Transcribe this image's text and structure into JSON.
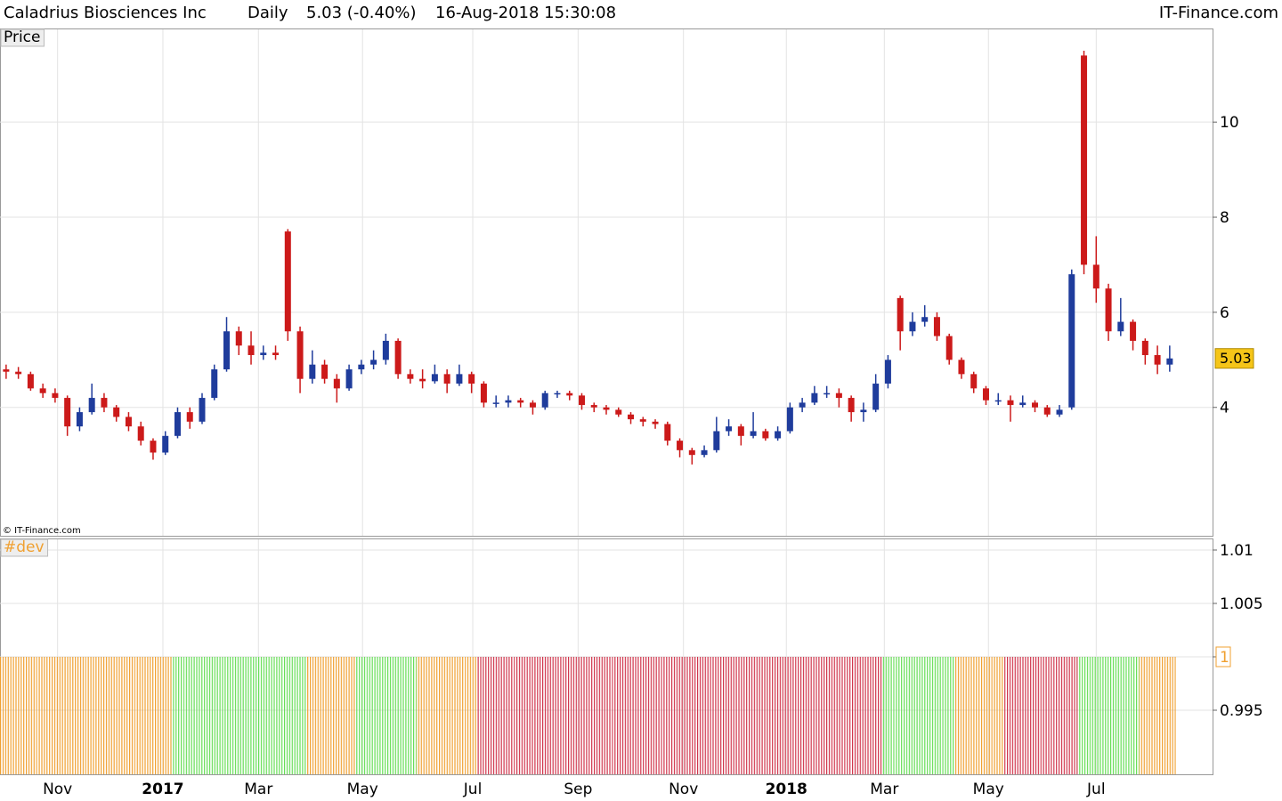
{
  "header": {
    "title": "Caladrius Biosciences Inc",
    "period": "Daily",
    "change": "5.03 (-0.40%)",
    "timestamp": "16-Aug-2018 15:30:08",
    "brand": "IT-Finance.com"
  },
  "chart_data": [
    {
      "type": "candlestick",
      "label": "Price",
      "copyright": "© IT-Finance.com",
      "up_color": "#1f3c9c",
      "down_color": "#cc1a1a",
      "grid": true,
      "xlim": [
        -0.5,
        98.5
      ],
      "ylim": [
        1.3,
        11.95
      ],
      "yticks": [
        4,
        6,
        8,
        10
      ],
      "xticks": [
        {
          "value": 4.2,
          "label": "Nov"
        },
        {
          "value": 12.8,
          "label": "2017"
        },
        {
          "value": 20.6,
          "label": "Mar"
        },
        {
          "value": 29.1,
          "label": "May"
        },
        {
          "value": 38.1,
          "label": "Jul"
        },
        {
          "value": 46.7,
          "label": "Sep"
        },
        {
          "value": 55.3,
          "label": "Nov"
        },
        {
          "value": 63.7,
          "label": "2018"
        },
        {
          "value": 71.7,
          "label": "Mar"
        },
        {
          "value": 80.2,
          "label": "May"
        },
        {
          "value": 89.0,
          "label": "Jul"
        }
      ],
      "candles": [
        {
          "o": 4.8,
          "h": 4.9,
          "l": 4.6,
          "c": 4.75
        },
        {
          "o": 4.75,
          "h": 4.85,
          "l": 4.6,
          "c": 4.7
        },
        {
          "o": 4.7,
          "h": 4.75,
          "l": 4.35,
          "c": 4.4
        },
        {
          "o": 4.4,
          "h": 4.5,
          "l": 4.2,
          "c": 4.3
        },
        {
          "o": 4.3,
          "h": 4.4,
          "l": 4.1,
          "c": 4.2
        },
        {
          "o": 4.2,
          "h": 4.25,
          "l": 3.4,
          "c": 3.6
        },
        {
          "o": 3.6,
          "h": 4.0,
          "l": 3.5,
          "c": 3.9
        },
        {
          "o": 3.9,
          "h": 4.5,
          "l": 3.85,
          "c": 4.2
        },
        {
          "o": 4.2,
          "h": 4.3,
          "l": 3.9,
          "c": 4.0
        },
        {
          "o": 4.0,
          "h": 4.05,
          "l": 3.7,
          "c": 3.8
        },
        {
          "o": 3.8,
          "h": 3.9,
          "l": 3.5,
          "c": 3.6
        },
        {
          "o": 3.6,
          "h": 3.7,
          "l": 3.2,
          "c": 3.3
        },
        {
          "o": 3.3,
          "h": 3.35,
          "l": 2.9,
          "c": 3.05
        },
        {
          "o": 3.05,
          "h": 3.5,
          "l": 3.0,
          "c": 3.4
        },
        {
          "o": 3.4,
          "h": 4.0,
          "l": 3.35,
          "c": 3.9
        },
        {
          "o": 3.9,
          "h": 4.0,
          "l": 3.55,
          "c": 3.7
        },
        {
          "o": 3.7,
          "h": 4.3,
          "l": 3.65,
          "c": 4.2
        },
        {
          "o": 4.2,
          "h": 4.9,
          "l": 4.15,
          "c": 4.8
        },
        {
          "o": 4.8,
          "h": 5.9,
          "l": 4.75,
          "c": 5.6
        },
        {
          "o": 5.6,
          "h": 5.7,
          "l": 5.1,
          "c": 5.3
        },
        {
          "o": 5.3,
          "h": 5.6,
          "l": 4.9,
          "c": 5.1
        },
        {
          "o": 5.1,
          "h": 5.3,
          "l": 5.0,
          "c": 5.15
        },
        {
          "o": 5.15,
          "h": 5.3,
          "l": 5.0,
          "c": 5.1
        },
        {
          "o": 7.7,
          "h": 7.75,
          "l": 5.4,
          "c": 5.6
        },
        {
          "o": 5.6,
          "h": 5.7,
          "l": 4.3,
          "c": 4.6
        },
        {
          "o": 4.6,
          "h": 5.2,
          "l": 4.5,
          "c": 4.9
        },
        {
          "o": 4.9,
          "h": 5.0,
          "l": 4.5,
          "c": 4.6
        },
        {
          "o": 4.6,
          "h": 4.7,
          "l": 4.1,
          "c": 4.4
        },
        {
          "o": 4.4,
          "h": 4.9,
          "l": 4.35,
          "c": 4.8
        },
        {
          "o": 4.8,
          "h": 5.0,
          "l": 4.7,
          "c": 4.9
        },
        {
          "o": 4.9,
          "h": 5.2,
          "l": 4.8,
          "c": 5.0
        },
        {
          "o": 5.0,
          "h": 5.55,
          "l": 4.9,
          "c": 5.4
        },
        {
          "o": 5.4,
          "h": 5.45,
          "l": 4.6,
          "c": 4.7
        },
        {
          "o": 4.7,
          "h": 4.8,
          "l": 4.5,
          "c": 4.6
        },
        {
          "o": 4.6,
          "h": 4.8,
          "l": 4.4,
          "c": 4.55
        },
        {
          "o": 4.55,
          "h": 4.9,
          "l": 4.5,
          "c": 4.7
        },
        {
          "o": 4.7,
          "h": 4.8,
          "l": 4.3,
          "c": 4.5
        },
        {
          "o": 4.5,
          "h": 4.9,
          "l": 4.45,
          "c": 4.7
        },
        {
          "o": 4.7,
          "h": 4.75,
          "l": 4.3,
          "c": 4.5
        },
        {
          "o": 4.5,
          "h": 4.55,
          "l": 4.0,
          "c": 4.1
        },
        {
          "o": 4.1,
          "h": 4.25,
          "l": 4.0,
          "c": 4.1
        },
        {
          "o": 4.1,
          "h": 4.25,
          "l": 4.0,
          "c": 4.15
        },
        {
          "o": 4.15,
          "h": 4.2,
          "l": 4.0,
          "c": 4.1
        },
        {
          "o": 4.1,
          "h": 4.15,
          "l": 3.85,
          "c": 4.0
        },
        {
          "o": 4.0,
          "h": 4.35,
          "l": 3.95,
          "c": 4.3
        },
        {
          "o": 4.3,
          "h": 4.35,
          "l": 4.2,
          "c": 4.3
        },
        {
          "o": 4.3,
          "h": 4.35,
          "l": 4.15,
          "c": 4.25
        },
        {
          "o": 4.25,
          "h": 4.3,
          "l": 3.95,
          "c": 4.05
        },
        {
          "o": 4.05,
          "h": 4.1,
          "l": 3.9,
          "c": 4.0
        },
        {
          "o": 4.0,
          "h": 4.05,
          "l": 3.85,
          "c": 3.95
        },
        {
          "o": 3.95,
          "h": 4.0,
          "l": 3.8,
          "c": 3.85
        },
        {
          "o": 3.85,
          "h": 3.9,
          "l": 3.65,
          "c": 3.75
        },
        {
          "o": 3.75,
          "h": 3.8,
          "l": 3.6,
          "c": 3.7
        },
        {
          "o": 3.7,
          "h": 3.75,
          "l": 3.55,
          "c": 3.65
        },
        {
          "o": 3.65,
          "h": 3.7,
          "l": 3.2,
          "c": 3.3
        },
        {
          "o": 3.3,
          "h": 3.35,
          "l": 2.95,
          "c": 3.1
        },
        {
          "o": 3.1,
          "h": 3.15,
          "l": 2.8,
          "c": 3.0
        },
        {
          "o": 3.0,
          "h": 3.2,
          "l": 2.95,
          "c": 3.1
        },
        {
          "o": 3.1,
          "h": 3.8,
          "l": 3.05,
          "c": 3.5
        },
        {
          "o": 3.5,
          "h": 3.75,
          "l": 3.4,
          "c": 3.6
        },
        {
          "o": 3.6,
          "h": 3.65,
          "l": 3.2,
          "c": 3.4
        },
        {
          "o": 3.4,
          "h": 3.9,
          "l": 3.35,
          "c": 3.5
        },
        {
          "o": 3.5,
          "h": 3.55,
          "l": 3.3,
          "c": 3.35
        },
        {
          "o": 3.35,
          "h": 3.6,
          "l": 3.3,
          "c": 3.5
        },
        {
          "o": 3.5,
          "h": 4.1,
          "l": 3.45,
          "c": 4.0
        },
        {
          "o": 4.0,
          "h": 4.2,
          "l": 3.9,
          "c": 4.1
        },
        {
          "o": 4.1,
          "h": 4.45,
          "l": 4.05,
          "c": 4.3
        },
        {
          "o": 4.3,
          "h": 4.45,
          "l": 4.2,
          "c": 4.3
        },
        {
          "o": 4.3,
          "h": 4.4,
          "l": 4.0,
          "c": 4.2
        },
        {
          "o": 4.2,
          "h": 4.25,
          "l": 3.7,
          "c": 3.9
        },
        {
          "o": 3.9,
          "h": 4.1,
          "l": 3.7,
          "c": 3.95
        },
        {
          "o": 3.95,
          "h": 4.7,
          "l": 3.9,
          "c": 4.5
        },
        {
          "o": 4.5,
          "h": 5.1,
          "l": 4.4,
          "c": 5.0
        },
        {
          "o": 6.3,
          "h": 6.35,
          "l": 5.2,
          "c": 5.6
        },
        {
          "o": 5.6,
          "h": 6.0,
          "l": 5.5,
          "c": 5.8
        },
        {
          "o": 5.8,
          "h": 6.15,
          "l": 5.7,
          "c": 5.9
        },
        {
          "o": 5.9,
          "h": 6.0,
          "l": 5.4,
          "c": 5.5
        },
        {
          "o": 5.5,
          "h": 5.55,
          "l": 4.9,
          "c": 5.0
        },
        {
          "o": 5.0,
          "h": 5.05,
          "l": 4.6,
          "c": 4.7
        },
        {
          "o": 4.7,
          "h": 4.75,
          "l": 4.3,
          "c": 4.4
        },
        {
          "o": 4.4,
          "h": 4.45,
          "l": 4.05,
          "c": 4.15
        },
        {
          "o": 4.15,
          "h": 4.3,
          "l": 4.05,
          "c": 4.15
        },
        {
          "o": 4.15,
          "h": 4.25,
          "l": 3.7,
          "c": 4.05
        },
        {
          "o": 4.05,
          "h": 4.25,
          "l": 4.0,
          "c": 4.1
        },
        {
          "o": 4.1,
          "h": 4.15,
          "l": 3.9,
          "c": 4.0
        },
        {
          "o": 4.0,
          "h": 4.05,
          "l": 3.8,
          "c": 3.85
        },
        {
          "o": 3.85,
          "h": 4.05,
          "l": 3.8,
          "c": 3.95
        },
        {
          "o": 4.0,
          "h": 6.9,
          "l": 3.95,
          "c": 6.8
        },
        {
          "o": 11.4,
          "h": 11.5,
          "l": 6.8,
          "c": 7.0
        },
        {
          "o": 7.0,
          "h": 7.6,
          "l": 6.2,
          "c": 6.5
        },
        {
          "o": 6.5,
          "h": 6.6,
          "l": 5.4,
          "c": 5.6
        },
        {
          "o": 5.6,
          "h": 6.3,
          "l": 5.5,
          "c": 5.8
        },
        {
          "o": 5.8,
          "h": 5.85,
          "l": 5.2,
          "c": 5.4
        },
        {
          "o": 5.4,
          "h": 5.45,
          "l": 4.9,
          "c": 5.1
        },
        {
          "o": 5.1,
          "h": 5.3,
          "l": 4.7,
          "c": 4.9
        },
        {
          "o": 4.9,
          "h": 5.3,
          "l": 4.75,
          "c": 5.03
        }
      ]
    },
    {
      "type": "bar",
      "label": "#dev",
      "ylim": [
        0.989,
        1.011
      ],
      "yticks": [
        1.01,
        1.005,
        1,
        0.995
      ],
      "grid": true,
      "values": [
        1,
        1,
        1,
        1,
        1,
        1,
        1,
        1,
        1,
        1,
        1,
        1,
        1,
        1,
        1,
        1,
        1,
        1,
        1,
        1,
        1,
        1,
        1,
        1,
        1,
        1,
        1,
        1,
        1,
        1,
        1,
        1,
        1,
        1,
        1,
        1,
        1,
        1,
        1,
        1,
        1,
        1,
        1,
        1,
        1,
        1,
        1,
        1,
        1,
        1,
        1,
        1,
        1,
        1,
        1,
        1,
        1,
        1,
        1,
        1,
        1,
        1,
        1,
        1,
        1,
        1,
        1,
        1,
        1,
        1,
        1,
        1,
        1,
        1,
        1,
        1,
        1,
        1,
        1,
        1,
        1,
        1,
        1,
        1,
        1,
        1,
        1,
        1,
        1,
        1,
        1,
        1,
        1,
        1,
        1,
        1
      ],
      "colors": [
        "#f0a030",
        "#f0a030",
        "#f0a030",
        "#f0a030",
        "#f0a030",
        "#f0a030",
        "#f0a030",
        "#f0a030",
        "#f0a030",
        "#f0a030",
        "#f0a030",
        "#f0a030",
        "#f0a030",
        "#f0a030",
        "#66dd55",
        "#66dd55",
        "#66dd55",
        "#66dd55",
        "#66dd55",
        "#66dd55",
        "#66dd55",
        "#66dd55",
        "#66dd55",
        "#66dd55",
        "#66dd55",
        "#f0a030",
        "#f0a030",
        "#f0a030",
        "#f0a030",
        "#66dd55",
        "#66dd55",
        "#66dd55",
        "#66dd55",
        "#66dd55",
        "#f0a030",
        "#f0a030",
        "#f0a030",
        "#f0a030",
        "#f0a030",
        "#d0334a",
        "#d0334a",
        "#d0334a",
        "#d0334a",
        "#d0334a",
        "#d0334a",
        "#d0334a",
        "#d0334a",
        "#d0334a",
        "#d0334a",
        "#d0334a",
        "#d0334a",
        "#d0334a",
        "#d0334a",
        "#d0334a",
        "#d0334a",
        "#d0334a",
        "#d0334a",
        "#d0334a",
        "#d0334a",
        "#d0334a",
        "#d0334a",
        "#d0334a",
        "#d0334a",
        "#d0334a",
        "#d0334a",
        "#d0334a",
        "#d0334a",
        "#d0334a",
        "#d0334a",
        "#d0334a",
        "#d0334a",
        "#d0334a",
        "#66dd55",
        "#66dd55",
        "#66dd55",
        "#66dd55",
        "#66dd55",
        "#66dd55",
        "#f0a030",
        "#f0a030",
        "#f0a030",
        "#f0a030",
        "#d0334a",
        "#d0334a",
        "#d0334a",
        "#d0334a",
        "#d0334a",
        "#d0334a",
        "#66dd55",
        "#66dd55",
        "#66dd55",
        "#66dd55",
        "#66dd55",
        "#f0a030",
        "#f0a030",
        "#f0a030"
      ]
    }
  ]
}
